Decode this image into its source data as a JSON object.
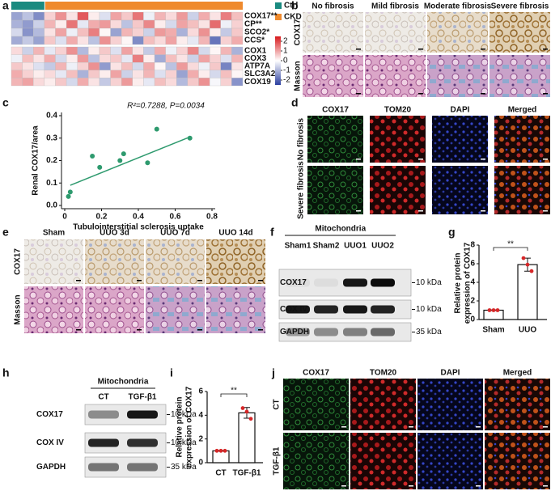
{
  "figure_labels": [
    "a",
    "b",
    "c",
    "d",
    "e",
    "f",
    "g",
    "h",
    "i",
    "j"
  ],
  "heatmap": {
    "groups": [
      {
        "name": "Ctrl",
        "color": "#1a8a80",
        "count": 3
      },
      {
        "name": "CKD",
        "color": "#ef8a2d",
        "count": 18
      }
    ],
    "rows": [
      "COX17**",
      "CP**",
      "SCO2*",
      "CCS*",
      "COX1",
      "COX3",
      "ATP7A",
      "SLC3A2",
      "COX19"
    ],
    "blocks": [
      4,
      5
    ],
    "values": [
      [
        -1.2,
        -0.8,
        -1.5,
        0.5,
        1.2,
        0.3,
        1.8,
        0.2,
        -0.4,
        1.0,
        0.6,
        1.5,
        -0.2,
        0.8,
        0.4,
        1.1,
        -0.6,
        0.9,
        0.3,
        1.4,
        0.7
      ],
      [
        -1.0,
        -1.3,
        -0.6,
        0.8,
        0.2,
        1.5,
        -0.3,
        0.9,
        1.1,
        0.4,
        -0.8,
        0.6,
        1.3,
        0.2,
        -0.5,
        1.0,
        0.7,
        0.3,
        1.6,
        -0.2,
        0.5
      ],
      [
        -0.5,
        -1.4,
        -0.9,
        0.3,
        1.0,
        -0.2,
        0.7,
        1.4,
        0.1,
        -1.2,
        0.8,
        0.5,
        -0.6,
        1.1,
        0.9,
        -1.0,
        0.4,
        1.2,
        0.2,
        -0.7,
        0.6
      ],
      [
        -1.1,
        -0.7,
        -1.2,
        0.6,
        -0.4,
        0.9,
        0.3,
        -0.8,
        1.2,
        0.5,
        0.1,
        -1.5,
        0.7,
        0.4,
        1.0,
        0.2,
        -0.3,
        0.8,
        -1.8,
        0.5,
        0.9
      ],
      [
        0.4,
        -0.6,
        0.8,
        -0.3,
        0.5,
        1.2,
        -0.9,
        0.2,
        0.6,
        -0.4,
        1.0,
        0.3,
        -0.7,
        0.9,
        -0.2,
        0.5,
        1.3,
        -0.5,
        0.1,
        0.8,
        -1.0
      ],
      [
        -0.2,
        0.7,
        0.3,
        0.9,
        -0.5,
        0.2,
        1.1,
        -0.8,
        0.4,
        0.6,
        -0.3,
        1.4,
        0.2,
        -1.1,
        0.7,
        0.3,
        -0.6,
        1.0,
        0.5,
        -0.4,
        0.8
      ],
      [
        0.6,
        0.3,
        -0.4,
        -0.7,
        0.8,
        -0.2,
        0.5,
        1.2,
        -1.3,
        0.3,
        0.7,
        -0.5,
        0.9,
        0.1,
        -0.8,
        1.1,
        0.4,
        -0.2,
        0.6,
        -1.6,
        0.3
      ],
      [
        0.9,
        0.5,
        0.2,
        0.4,
        -0.3,
        0.7,
        -1.0,
        0.6,
        0.2,
        1.0,
        -0.6,
        0.3,
        0.8,
        -0.4,
        0.5,
        -1.2,
        0.9,
        0.2,
        -0.5,
        0.7,
        0.1
      ],
      [
        0.8,
        1.0,
        0.4,
        0.2,
        0.6,
        -0.5,
        0.9,
        0.3,
        -0.7,
        0.5,
        1.1,
        0.2,
        -0.3,
        0.7,
        0.4,
        -0.9,
        0.6,
        1.2,
        -0.1,
        0.5,
        -1.4
      ]
    ],
    "clim": [
      -2.5,
      2.5
    ],
    "colorbar_ticks": [
      2,
      1,
      0,
      -1,
      -2
    ]
  },
  "panel_b": {
    "columns": [
      "No fibrosis",
      "Mild fibrosis",
      "Moderate fibrosis",
      "Severe fibrosis"
    ],
    "rows": [
      "COX17",
      "Masson"
    ]
  },
  "chart_data": [
    {
      "type": "scatter",
      "annotation": "R²=0.7288, P=0.0034",
      "xlabel": "Tubulointerstitial sclerosis uptake",
      "ylabel": "Renal COX17/area",
      "x": [
        0.02,
        0.03,
        0.15,
        0.19,
        0.3,
        0.32,
        0.45,
        0.5,
        0.68
      ],
      "values": [
        0.04,
        0.06,
        0.22,
        0.17,
        0.2,
        0.23,
        0.19,
        0.34,
        0.3
      ],
      "color": "#2e9a6e",
      "fit": {
        "x": [
          0.03,
          0.68
        ],
        "values": [
          0.09,
          0.305
        ]
      },
      "xlim": [
        0,
        0.8
      ],
      "xticks": [
        0,
        0.2,
        0.4,
        0.6,
        0.8
      ],
      "ylim": [
        0,
        0.4
      ],
      "yticks": [
        {
          "value": 0,
          "label": "0.0"
        },
        0.1,
        0.2,
        0.3,
        0.4
      ]
    },
    {
      "type": "bar",
      "ylabel": [
        "Relative protein",
        "expression of COX17"
      ],
      "categories": [
        "Sham",
        "UUO"
      ],
      "values": [
        1,
        5.9
      ],
      "errors": [
        0.03,
        0.7
      ],
      "points": [
        [
          1,
          1,
          1
        ],
        [
          6.6,
          5.9,
          5.2
        ]
      ],
      "point_color": "#d62728",
      "significance": "**",
      "ylim": [
        0,
        8
      ],
      "yticks": [
        0,
        2,
        4,
        6,
        8
      ]
    },
    {
      "type": "bar",
      "ylabel": [
        "Relative protein",
        "expression of COX17"
      ],
      "categories": [
        "CT",
        "TGF-β1"
      ],
      "values": [
        1,
        4.2
      ],
      "errors": [
        0.03,
        0.45
      ],
      "points": [
        [
          1,
          1,
          1
        ],
        [
          4.6,
          4.3,
          3.7
        ]
      ],
      "point_color": "#d62728",
      "significance": "**",
      "ylim": [
        0,
        6
      ],
      "yticks": [
        0,
        2,
        4,
        6
      ]
    }
  ],
  "panel_d": {
    "columns": [
      {
        "text": "COX17",
        "color": "#3aa935"
      },
      {
        "text": "TOM20",
        "color": "#e0282b"
      },
      {
        "text": "DAPI",
        "color": "#2c3fb0"
      },
      {
        "text": "Merged",
        "color": "#222222"
      }
    ],
    "rows": [
      "No fibrosis",
      "Severe fibrosis"
    ]
  },
  "panel_e": {
    "columns": [
      "Sham",
      "UUO 3d",
      "UUO 7d",
      "UUO 14d"
    ],
    "rows": [
      "COX17",
      "Masson"
    ]
  },
  "panel_f": {
    "header": "Mitochondria",
    "lanes": [
      "Sham1",
      "Sham2",
      "UUO1",
      "UUO2"
    ],
    "rows": [
      "COX17",
      "COX IV",
      "GAPDH"
    ],
    "markers": [
      "10 kDa",
      "10 kDa",
      "35 kDa"
    ],
    "bands": [
      [
        0.05,
        0.05,
        0.9,
        0.95
      ],
      [
        0.9,
        0.85,
        0.9,
        0.85
      ],
      [
        0.35,
        0.4,
        0.45,
        0.55
      ]
    ]
  },
  "panel_h": {
    "header": "Mitochondria",
    "lanes": [
      "CT",
      "TGF-β1"
    ],
    "rows": [
      "COX17",
      "COX IV",
      "GAPDH"
    ],
    "markers": [
      "10 kDa",
      "10 kDa",
      "35 kDa"
    ],
    "bands": [
      [
        0.4,
        0.9
      ],
      [
        0.85,
        0.8
      ],
      [
        0.5,
        0.5
      ]
    ]
  },
  "panel_j": {
    "columns": [
      {
        "text": "COX17",
        "color": "#3aa935"
      },
      {
        "text": "TOM20",
        "color": "#e0282b"
      },
      {
        "text": "DAPI",
        "color": "#2c3fb0"
      },
      {
        "text": "Merged",
        "color": "#222222"
      }
    ],
    "rows": [
      "CT",
      "TGF-β1"
    ]
  }
}
